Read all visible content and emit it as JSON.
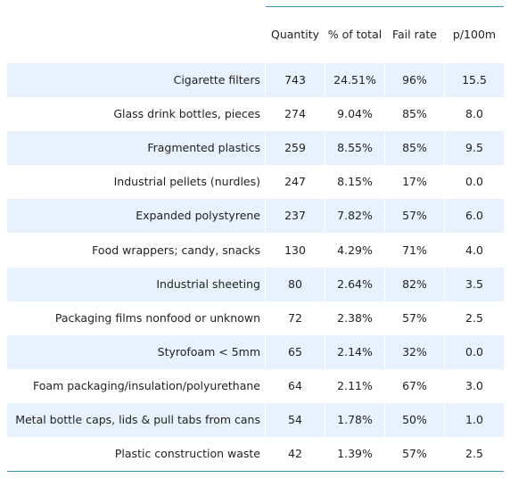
{
  "table": {
    "columns": [
      "Quantity",
      "% of total",
      "Fail rate",
      "p/100m"
    ],
    "rows": [
      {
        "label": "Cigarette filters",
        "values": [
          "743",
          "24.51%",
          "96%",
          "15.5"
        ]
      },
      {
        "label": "Glass drink bottles, pieces",
        "values": [
          "274",
          "9.04%",
          "85%",
          "8.0"
        ]
      },
      {
        "label": "Fragmented plastics",
        "values": [
          "259",
          "8.55%",
          "85%",
          "9.5"
        ]
      },
      {
        "label": "Industrial pellets (nurdles)",
        "values": [
          "247",
          "8.15%",
          "17%",
          "0.0"
        ]
      },
      {
        "label": "Expanded polystyrene",
        "values": [
          "237",
          "7.82%",
          "57%",
          "6.0"
        ]
      },
      {
        "label": "Food wrappers; candy, snacks",
        "values": [
          "130",
          "4.29%",
          "71%",
          "4.0"
        ]
      },
      {
        "label": "Industrial sheeting",
        "values": [
          "80",
          "2.64%",
          "82%",
          "3.5"
        ]
      },
      {
        "label": "Packaging films nonfood or unknown",
        "values": [
          "72",
          "2.38%",
          "57%",
          "2.5"
        ]
      },
      {
        "label": "Styrofoam < 5mm",
        "values": [
          "65",
          "2.14%",
          "32%",
          "0.0"
        ]
      },
      {
        "label": "Foam packaging/insulation/polyurethane",
        "values": [
          "64",
          "2.11%",
          "67%",
          "3.0"
        ]
      },
      {
        "label": "Metal bottle caps, lids & pull tabs from cans",
        "values": [
          "54",
          "1.78%",
          "50%",
          "1.0"
        ]
      },
      {
        "label": "Plastic construction waste",
        "values": [
          "42",
          "1.39%",
          "57%",
          "2.5"
        ]
      }
    ],
    "colors": {
      "row_shade": "#e8f2fe",
      "rule": "#3a96a3"
    }
  }
}
